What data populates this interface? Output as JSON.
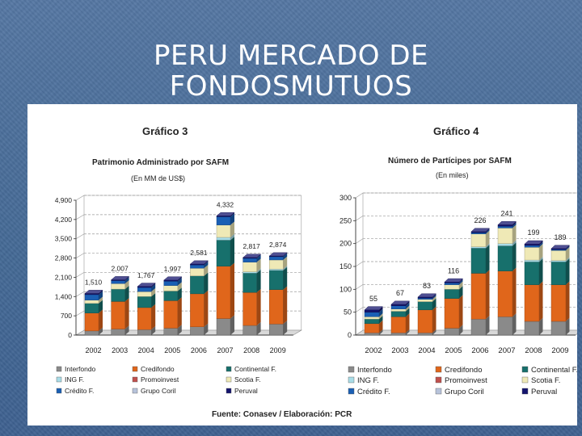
{
  "slide": {
    "title_line1": "PERU MERCADO DE",
    "title_line2": "FONDOSMUTUOS"
  },
  "source": "Fuente: Conasev / Elaboración: PCR",
  "colors": {
    "Interfondo": "#8a8a8a",
    "Credifondo": "#e0661b",
    "Continental F.": "#17706c",
    "ING F.": "#a9dde8",
    "Promoinvest": "#c0504d",
    "Scotia F.": "#efe9b6",
    "Crédito F.": "#1a5fb4",
    "Grupo Coril": "#b7c3da",
    "Peruval": "#14146e"
  },
  "chart_data": [
    {
      "type": "bar",
      "stacked": true,
      "title": "Gráfico 3",
      "subtitle": "Patrimonio Administrado por SAFM",
      "unit_label": "(En MM de US$)",
      "categories": [
        "2002",
        "2003",
        "2004",
        "2005",
        "2006",
        "2007",
        "2008",
        "2009"
      ],
      "totals": [
        1510,
        2007,
        1767,
        1997,
        2581,
        4332,
        2817,
        2874
      ],
      "total_labels": [
        "1,510",
        "2,007",
        "1,767",
        "1,997",
        "2,581",
        "4,332",
        "2,817",
        "2,874"
      ],
      "yticks": [
        0,
        700,
        1400,
        2100,
        2800,
        3500,
        4200,
        4900
      ],
      "ytick_labels": [
        "0",
        "700",
        "1,400",
        "2,100",
        "2,800",
        "3,500",
        "4,200",
        "4,900"
      ],
      "ylim": [
        0,
        4900
      ],
      "grid": true,
      "legend_position": "bottom",
      "legend_order": [
        "Interfondo",
        "Credifondo",
        "Continental F.",
        "ING F.",
        "Promoinvest",
        "Scotia F.",
        "Crédito F.",
        "Grupo Coril",
        "Peruval"
      ],
      "series": [
        {
          "name": "Interfondo",
          "values": [
            150,
            220,
            200,
            250,
            300,
            600,
            350,
            400
          ]
        },
        {
          "name": "Credifondo",
          "values": [
            650,
            1000,
            800,
            1000,
            1200,
            1900,
            1200,
            1250
          ]
        },
        {
          "name": "Continental F.",
          "values": [
            350,
            450,
            400,
            350,
            650,
            950,
            700,
            700
          ]
        },
        {
          "name": "ING F.",
          "values": [
            0,
            0,
            0,
            0,
            0,
            100,
            50,
            50
          ]
        },
        {
          "name": "Promoinvest",
          "values": [
            0,
            0,
            0,
            0,
            0,
            0,
            0,
            0
          ]
        },
        {
          "name": "Scotia F.",
          "values": [
            120,
            200,
            180,
            200,
            280,
            450,
            350,
            330
          ]
        },
        {
          "name": "Crédito F.",
          "values": [
            200,
            110,
            150,
            160,
            120,
            300,
            140,
            120
          ]
        },
        {
          "name": "Grupo Coril",
          "values": [
            0,
            0,
            0,
            0,
            0,
            0,
            0,
            0
          ]
        },
        {
          "name": "Peruval",
          "values": [
            40,
            27,
            37,
            37,
            31,
            32,
            27,
            24
          ]
        }
      ]
    },
    {
      "type": "bar",
      "stacked": true,
      "title": "Gráfico 4",
      "subtitle": "Número de Partícipes por SAFM",
      "unit_label": "(En miles)",
      "categories": [
        "2002",
        "2003",
        "2004",
        "2005",
        "2006",
        "2007",
        "2008",
        "2009"
      ],
      "totals": [
        55,
        67,
        83,
        116,
        226,
        241,
        199,
        189
      ],
      "total_labels": [
        "55",
        "67",
        "83",
        "116",
        "226",
        "241",
        "199",
        "189"
      ],
      "yticks": [
        0,
        50,
        100,
        150,
        200,
        250,
        300
      ],
      "ytick_labels": [
        "0",
        "50",
        "100",
        "150",
        "200",
        "250",
        "300"
      ],
      "ylim": [
        0,
        300
      ],
      "grid": true,
      "legend_position": "bottom",
      "legend_order": [
        "Interfondo",
        "Credifondo",
        "Continental F.",
        "ING F.",
        "Promoinvest",
        "Scotia F.",
        "Crédito F.",
        "Grupo Coril",
        "Peruval"
      ],
      "series": [
        {
          "name": "Interfondo",
          "values": [
            5,
            5,
            5,
            15,
            35,
            40,
            30,
            30
          ]
        },
        {
          "name": "Credifondo",
          "values": [
            20,
            35,
            50,
            65,
            100,
            100,
            80,
            80
          ]
        },
        {
          "name": "Continental F.",
          "values": [
            10,
            12,
            18,
            20,
            55,
            55,
            50,
            50
          ]
        },
        {
          "name": "ING F.",
          "values": [
            0,
            0,
            0,
            0,
            3,
            5,
            4,
            3
          ]
        },
        {
          "name": "Promoinvest",
          "values": [
            0,
            0,
            0,
            0,
            0,
            0,
            0,
            0
          ]
        },
        {
          "name": "Scotia F.",
          "values": [
            5,
            5,
            5,
            10,
            28,
            34,
            28,
            22
          ]
        },
        {
          "name": "Crédito F.",
          "values": [
            10,
            7,
            3,
            4,
            3,
            4,
            4,
            2
          ]
        },
        {
          "name": "Grupo Coril",
          "values": [
            0,
            0,
            0,
            0,
            0,
            0,
            0,
            0
          ]
        },
        {
          "name": "Peruval",
          "values": [
            5,
            3,
            2,
            2,
            2,
            3,
            3,
            2
          ]
        }
      ]
    }
  ]
}
